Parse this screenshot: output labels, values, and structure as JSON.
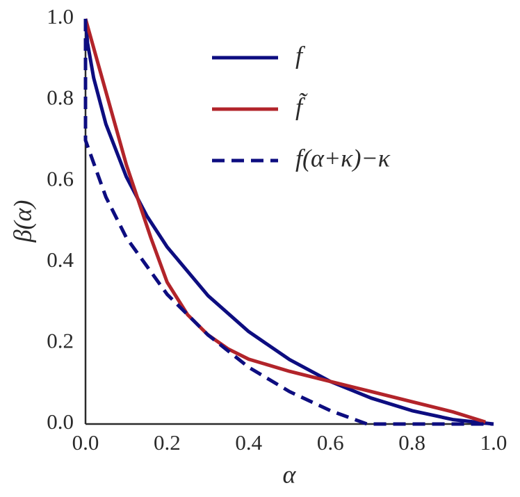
{
  "chart_data": {
    "type": "line",
    "xlabel": "α",
    "ylabel": "β(α)",
    "xlim": [
      0,
      1
    ],
    "ylim": [
      0,
      1
    ],
    "xticks": [
      {
        "value": 0,
        "label": "0.0"
      },
      {
        "value": 0.2,
        "label": "0.2"
      },
      {
        "value": 0.4,
        "label": "0.4"
      },
      {
        "value": 0.6,
        "label": "0.6"
      },
      {
        "value": 0.8,
        "label": "0.8"
      },
      {
        "value": 1,
        "label": "1.0"
      }
    ],
    "yticks": [
      {
        "value": 0,
        "label": "0.0"
      },
      {
        "value": 0.2,
        "label": "0.2"
      },
      {
        "value": 0.4,
        "label": "0.4"
      },
      {
        "value": 0.6,
        "label": "0.6"
      },
      {
        "value": 0.8,
        "label": "0.8"
      },
      {
        "value": 1,
        "label": "1.0"
      }
    ],
    "grid": false,
    "legend": "upper right",
    "series": [
      {
        "name": "f",
        "color": "#0d0d80",
        "dashed": false,
        "x": [
          0,
          0.005,
          0.02,
          0.05,
          0.1,
          0.15,
          0.2,
          0.3,
          0.4,
          0.5,
          0.6,
          0.7,
          0.8,
          0.9,
          1.0
        ],
        "values": [
          1.0,
          0.94,
          0.854,
          0.74,
          0.61,
          0.514,
          0.437,
          0.317,
          0.228,
          0.159,
          0.105,
          0.064,
          0.033,
          0.011,
          0
        ]
      },
      {
        "name": "f̃",
        "color": "#b2242a",
        "dashed": false,
        "x": [
          0,
          0.05,
          0.1,
          0.13,
          0.16,
          0.2,
          0.25,
          0.27,
          0.3,
          0.35,
          0.4,
          0.5,
          0.6,
          0.7,
          0.8,
          0.9,
          0.98
        ],
        "values": [
          1.0,
          0.82,
          0.64,
          0.55,
          0.46,
          0.35,
          0.27,
          0.25,
          0.22,
          0.185,
          0.16,
          0.13,
          0.105,
          0.08,
          0.055,
          0.03,
          0.005
        ]
      },
      {
        "name": "f(α+κ)−κ",
        "color": "#0d0d80",
        "dashed": true,
        "x": [
          0,
          0,
          0.05,
          0.1,
          0.15,
          0.2,
          0.3,
          0.4,
          0.5,
          0.6,
          0.69,
          1.0
        ],
        "values": [
          1.0,
          0.7,
          0.56,
          0.46,
          0.39,
          0.32,
          0.22,
          0.14,
          0.08,
          0.033,
          0,
          0
        ]
      }
    ]
  }
}
